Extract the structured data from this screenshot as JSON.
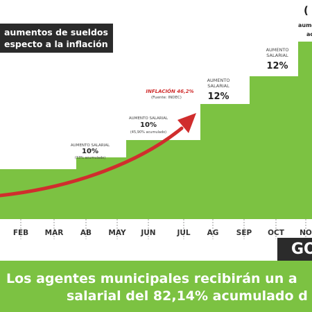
{
  "header": {
    "title_line1": "aumentos de sueldos",
    "title_line2": "especto a la inflación"
  },
  "chart_data": {
    "type": "area",
    "categories": [
      "FEB",
      "MAR",
      "AB",
      "MAY",
      "JUN",
      "JUL",
      "AG",
      "SEP",
      "OCT",
      "NO"
    ],
    "steps": [
      {
        "label_line1": "AUMENTO SALARIAL",
        "percent": "10%",
        "note": "(33% acumulado)"
      },
      {
        "label_line1": "AUMENTO SALARIAL",
        "percent": "10%",
        "note": "(45,90% acumulado)"
      },
      {
        "label_line1": "AUMENTO",
        "label_line2": "SALARIAL",
        "percent": "12%",
        "note": ""
      },
      {
        "label_line1": "AUMENTO",
        "label_line2": "SALARIAL",
        "percent": "12%",
        "note": ""
      }
    ],
    "inflation": {
      "label": "INFLACIÓN 46,2%",
      "source": "(Fuente: INDEC)"
    },
    "top_right_fragment": {
      "line1": "(",
      "line2": "aumen",
      "line3": "ac"
    },
    "colors": {
      "area": "#7cc242",
      "arrow": "#d02d2d",
      "title_bg": "#2b2b2b"
    }
  },
  "footer": {
    "gov_label": "GO",
    "banner_line1": "Los agentes municipales recibirán un a",
    "banner_line2": "salarial del 82,14% acumulado d"
  }
}
